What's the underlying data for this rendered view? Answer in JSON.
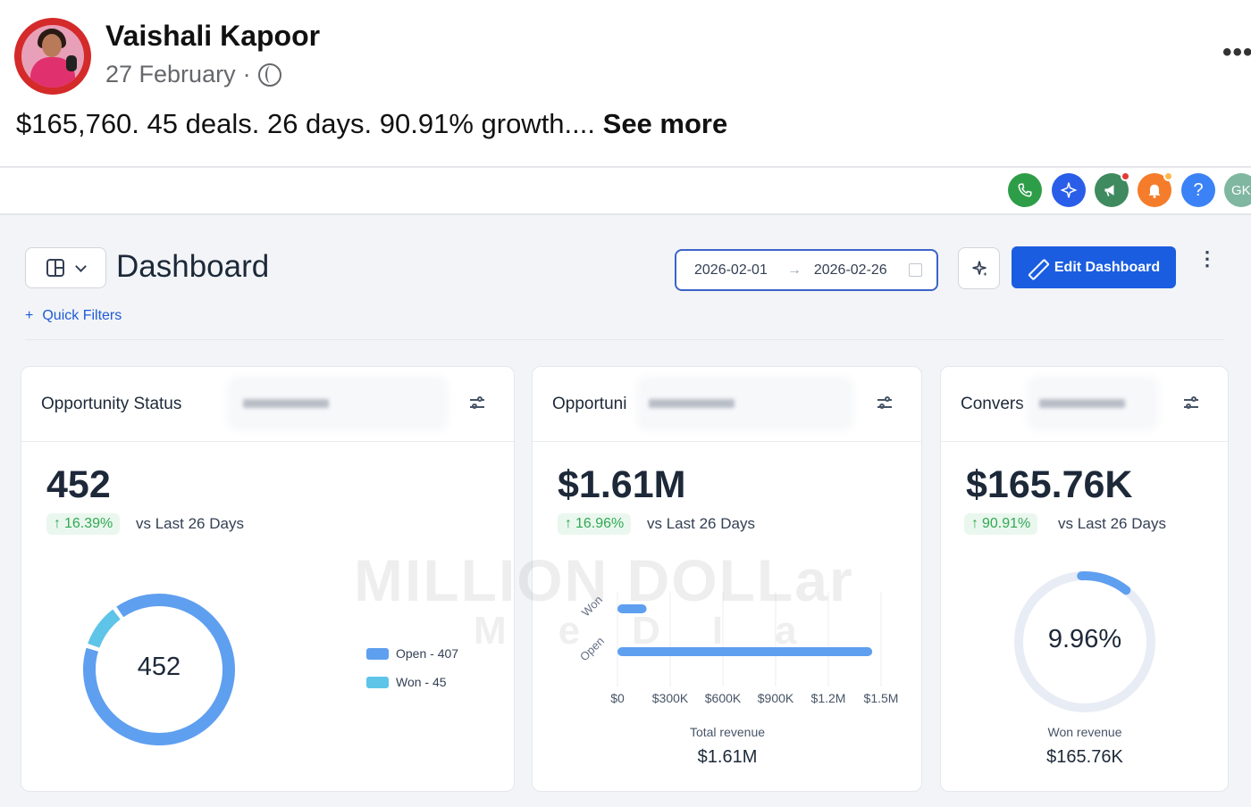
{
  "post": {
    "author": "Vaishali Kapoor",
    "date": "27 February",
    "date_separator": "·",
    "text": "$165,760. 45 deals. 26 days. 90.91% growth....",
    "see_more": "See more",
    "more_icon": "more-horizontal-icon"
  },
  "topbar": {
    "icons": [
      {
        "name": "phone-icon",
        "color": "#2e9d47",
        "glyph": "✆"
      },
      {
        "name": "sparkle-icon",
        "color": "#2a5ee8",
        "glyph": "✦"
      },
      {
        "name": "megaphone-icon",
        "color": "#3f8a5f",
        "glyph": "📣",
        "badge": "red"
      },
      {
        "name": "bell-icon",
        "color": "#f57c2a",
        "glyph": "🔔",
        "badge": "orange"
      },
      {
        "name": "help-icon",
        "color": "#3b82f6",
        "glyph": "?"
      },
      {
        "name": "user-avatar",
        "color": "#7fb7a0",
        "glyph": "GK"
      }
    ]
  },
  "dashboard": {
    "title": "Dashboard",
    "date_from": "2026-02-01",
    "date_arrow": "→",
    "date_to": "2026-02-26",
    "edit_label": "Edit Dashboard",
    "quick_filters_plus": "+",
    "quick_filters_label": "Quick Filters",
    "more_menu": "⋮"
  },
  "cards": {
    "opportunity_status": {
      "title": "Opportunity Status",
      "value": "452",
      "delta": "16.39%",
      "vs": "vs Last 26 Days",
      "center": "452",
      "legend": [
        {
          "label": "Open - 407",
          "color": "#5e9ff0"
        },
        {
          "label": "Won - 45",
          "color": "#5ec4e8"
        }
      ]
    },
    "opportunity_value": {
      "title": "Opportuni",
      "value": "$1.61M",
      "delta": "16.96%",
      "vs": "vs Last 26 Days",
      "y_labels": [
        "Won",
        "Open"
      ],
      "x_ticks": [
        "$0",
        "$300K",
        "$600K",
        "$900K",
        "$1.2M",
        "$1.5M"
      ],
      "footer_label": "Total revenue",
      "footer_value": "$1.61M"
    },
    "conversion": {
      "title": "Convers",
      "value": "$165.76K",
      "delta": "90.91%",
      "vs": "vs Last 26 Days",
      "gauge_value": "9.96%",
      "footer_label": "Won revenue",
      "footer_value": "$165.76K"
    }
  },
  "chart_data": [
    {
      "type": "pie",
      "title": "Opportunity Status",
      "categories": [
        "Open",
        "Won"
      ],
      "values": [
        407,
        45
      ],
      "center_label": "452"
    },
    {
      "type": "bar",
      "orientation": "horizontal",
      "title": "Opportuni",
      "categories": [
        "Won",
        "Open"
      ],
      "values": [
        165760,
        1450000
      ],
      "xlim": [
        0,
        1500000
      ],
      "x_ticks": [
        "$0",
        "$300K",
        "$600K",
        "$900K",
        "$1.2M",
        "$1.5M"
      ],
      "total_label": "Total revenue",
      "total_value": "$1.61M"
    },
    {
      "type": "pie",
      "title": "Convers",
      "values": [
        9.96,
        90.04
      ],
      "center_label": "9.96%"
    }
  ],
  "watermark": {
    "line1": "MILLION DOLLar",
    "line2": "MeDIa"
  },
  "colors": {
    "accent": "#1a5de0",
    "open": "#5e9ff0",
    "won": "#5ec4e8",
    "positive": "#31a954",
    "gauge_track": "#e8ecf5"
  }
}
